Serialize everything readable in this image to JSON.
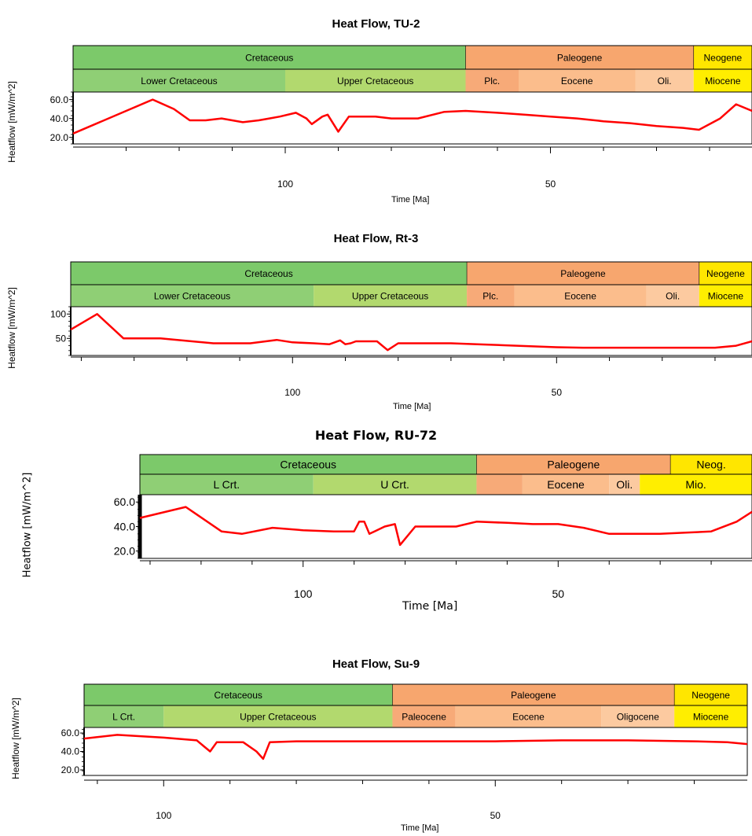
{
  "chart_data": [
    {
      "type": "line",
      "title": "Heat Flow, TU-2",
      "ylabel": "Heatflow [mW/m^2]",
      "xlabel": "Time [Ma]",
      "x_reversed": true,
      "xlim": [
        140,
        12
      ],
      "ylim": [
        13,
        68
      ],
      "ytick_labels": [
        "60.0",
        "40.0",
        "20.0"
      ],
      "yticks": [
        60,
        40,
        20
      ],
      "xtick_labels": [
        "100",
        "50"
      ],
      "xticks": [
        100,
        50
      ],
      "line_color": "#ff0000",
      "periods": [
        {
          "label": "Cretaceous",
          "from": 140,
          "to": 66,
          "color": "#7cc96a"
        },
        {
          "label": "Paleogene",
          "from": 66,
          "to": 23,
          "color": "#f7a66e"
        },
        {
          "label": "Neogene",
          "from": 23,
          "to": 12,
          "color": "#ffe600"
        }
      ],
      "epochs": [
        {
          "label": "Lower Cretaceous",
          "from": 140,
          "to": 100,
          "color": "#8fcf75"
        },
        {
          "label": "Upper Cretaceous",
          "from": 100,
          "to": 66,
          "color": "#b2d96e"
        },
        {
          "label": "Plc.",
          "from": 66,
          "to": 56,
          "color": "#f7aa78"
        },
        {
          "label": "Eocene",
          "from": 56,
          "to": 34,
          "color": "#fbbd8c"
        },
        {
          "label": "Oli.",
          "from": 34,
          "to": 23,
          "color": "#fccaa0"
        },
        {
          "label": "Miocene",
          "from": 23,
          "to": 12,
          "color": "#ffee00"
        }
      ],
      "series": [
        {
          "x": [
            140,
            125,
            121,
            118,
            115,
            112,
            108,
            105,
            103,
            101,
            98,
            96,
            95,
            93,
            92,
            90,
            88,
            87,
            85,
            83,
            80,
            75,
            70,
            66,
            60,
            55,
            50,
            45,
            40,
            35,
            30,
            25,
            22,
            18,
            15,
            12
          ],
          "y": [
            24,
            60,
            50,
            38,
            38,
            40,
            36,
            38,
            40,
            42,
            46,
            40,
            34,
            42,
            44,
            26,
            42,
            42,
            42,
            42,
            40,
            40,
            47,
            48,
            46,
            44,
            42,
            40,
            37,
            35,
            32,
            30,
            28,
            40,
            55,
            48
          ]
        }
      ]
    },
    {
      "type": "line",
      "title": "Heat Flow, Rt-3",
      "ylabel": "Heatflow [mW/m^2]",
      "xlabel": "Time [Ma]",
      "x_reversed": true,
      "xlim": [
        142,
        13
      ],
      "ylim": [
        15,
        115
      ],
      "ytick_labels": [
        "100",
        "50"
      ],
      "yticks": [
        100,
        50
      ],
      "xtick_labels": [
        "100",
        "50"
      ],
      "xticks": [
        100,
        50
      ],
      "line_color": "#ff0000",
      "periods": [
        {
          "label": "Cretaceous",
          "from": 142,
          "to": 67,
          "color": "#7cc96a"
        },
        {
          "label": "Paleogene",
          "from": 67,
          "to": 23,
          "color": "#f7a66e"
        },
        {
          "label": "Neogene",
          "from": 23,
          "to": 13,
          "color": "#ffe600"
        }
      ],
      "epochs": [
        {
          "label": "Lower Cretaceous",
          "from": 142,
          "to": 96,
          "color": "#8fcf75"
        },
        {
          "label": "Upper Cretaceous",
          "from": 96,
          "to": 67,
          "color": "#b2d96e"
        },
        {
          "label": "Plc.",
          "from": 67,
          "to": 58,
          "color": "#f7aa78"
        },
        {
          "label": "Eocene",
          "from": 58,
          "to": 33,
          "color": "#fbbd8c"
        },
        {
          "label": "Oli.",
          "from": 33,
          "to": 23,
          "color": "#fccaa0"
        },
        {
          "label": "Miocene",
          "from": 23,
          "to": 13,
          "color": "#ffee00"
        }
      ],
      "series": [
        {
          "x": [
            142,
            137,
            132,
            125,
            115,
            108,
            103,
            100,
            96,
            93,
            91,
            90,
            89,
            88,
            86,
            84,
            82,
            80,
            75,
            70,
            65,
            60,
            55,
            50,
            45,
            40,
            35,
            30,
            25,
            20,
            16,
            13
          ],
          "y": [
            68,
            100,
            50,
            50,
            40,
            40,
            47,
            42,
            40,
            38,
            46,
            38,
            40,
            44,
            44,
            44,
            26,
            40,
            40,
            40,
            38,
            36,
            34,
            32,
            31,
            31,
            31,
            31,
            31,
            31,
            35,
            44
          ]
        }
      ]
    },
    {
      "type": "line",
      "title": "Heat Flow, RU-72",
      "ylabel": "Heatflow [mW/m^2]",
      "xlabel": "Time [Ma]",
      "x_reversed": true,
      "xlim": [
        132,
        12
      ],
      "ylim": [
        14,
        66
      ],
      "ytick_labels": [
        "60.0",
        "40.0",
        "20.0"
      ],
      "yticks": [
        60,
        40,
        20
      ],
      "xtick_labels": [
        "100",
        "50"
      ],
      "xticks": [
        100,
        50
      ],
      "line_color": "#ff0000",
      "periods": [
        {
          "label": "Cretaceous",
          "from": 132,
          "to": 66,
          "color": "#7cc96a"
        },
        {
          "label": "Paleogene",
          "from": 66,
          "to": 28,
          "color": "#f7a66e"
        },
        {
          "label": "Neog.",
          "from": 28,
          "to": 12,
          "color": "#ffe600"
        }
      ],
      "epochs": [
        {
          "label": "L Crt.",
          "from": 132,
          "to": 98,
          "color": "#8fcf75"
        },
        {
          "label": "U Crt.",
          "from": 98,
          "to": 66,
          "color": "#b2d96e"
        },
        {
          "label": "",
          "from": 66,
          "to": 57,
          "color": "#f7aa78"
        },
        {
          "label": "Eocene",
          "from": 57,
          "to": 40,
          "color": "#fbbd8c"
        },
        {
          "label": "Oli.",
          "from": 40,
          "to": 34,
          "color": "#fccaa0"
        },
        {
          "label": "Mio.",
          "from": 34,
          "to": 12,
          "color": "#ffee00"
        }
      ],
      "series": [
        {
          "x": [
            132,
            123,
            116,
            112,
            106,
            100,
            94,
            90,
            89,
            88,
            87,
            86,
            84,
            82,
            81,
            80,
            78,
            74,
            70,
            66,
            60,
            55,
            50,
            45,
            40,
            35,
            30,
            25,
            20,
            15,
            12
          ],
          "y": [
            47,
            56,
            36,
            34,
            39,
            37,
            36,
            36,
            44,
            44,
            34,
            36,
            40,
            42,
            25,
            30,
            40,
            40,
            40,
            44,
            43,
            42,
            42,
            39,
            34,
            34,
            34,
            35,
            36,
            44,
            52
          ]
        }
      ]
    },
    {
      "type": "line",
      "title": "Heat Flow, Su-9",
      "ylabel": "Heatflow [mW/m^2]",
      "xlabel": "Time [Ma]",
      "x_reversed": true,
      "xlim": [
        112,
        12
      ],
      "ylim": [
        14,
        66
      ],
      "ytick_labels": [
        "60.0",
        "40.0",
        "20.0"
      ],
      "yticks": [
        60,
        40,
        20
      ],
      "xtick_labels": [
        "100",
        "50"
      ],
      "xticks": [
        100,
        50
      ],
      "line_color": "#ff0000",
      "periods": [
        {
          "label": "Cretaceous",
          "from": 112,
          "to": 65.5,
          "color": "#7cc96a"
        },
        {
          "label": "Paleogene",
          "from": 65.5,
          "to": 23,
          "color": "#f7a66e"
        },
        {
          "label": "Neogene",
          "from": 23,
          "to": 12,
          "color": "#ffe600"
        }
      ],
      "epochs": [
        {
          "label": "L Crt.",
          "from": 112,
          "to": 100,
          "color": "#8fcf75"
        },
        {
          "label": "Upper Cretaceous",
          "from": 100,
          "to": 65.5,
          "color": "#b2d96e"
        },
        {
          "label": "Paleocene",
          "from": 65.5,
          "to": 56,
          "color": "#f7aa78"
        },
        {
          "label": "Eocene",
          "from": 56,
          "to": 34,
          "color": "#fbbd8c"
        },
        {
          "label": "Oligocene",
          "from": 34,
          "to": 23,
          "color": "#fccaa0"
        },
        {
          "label": "Miocene",
          "from": 23,
          "to": 12,
          "color": "#ffee00"
        }
      ],
      "series": [
        {
          "x": [
            112,
            107,
            100,
            95,
            94,
            93,
            92,
            88,
            86,
            85,
            84,
            80,
            70,
            60,
            50,
            40,
            30,
            20,
            15,
            12
          ],
          "y": [
            54,
            58,
            55,
            52,
            46,
            40,
            50,
            50,
            40,
            32,
            50,
            51,
            51,
            51,
            51,
            52,
            52,
            51,
            50,
            48
          ]
        }
      ]
    }
  ]
}
